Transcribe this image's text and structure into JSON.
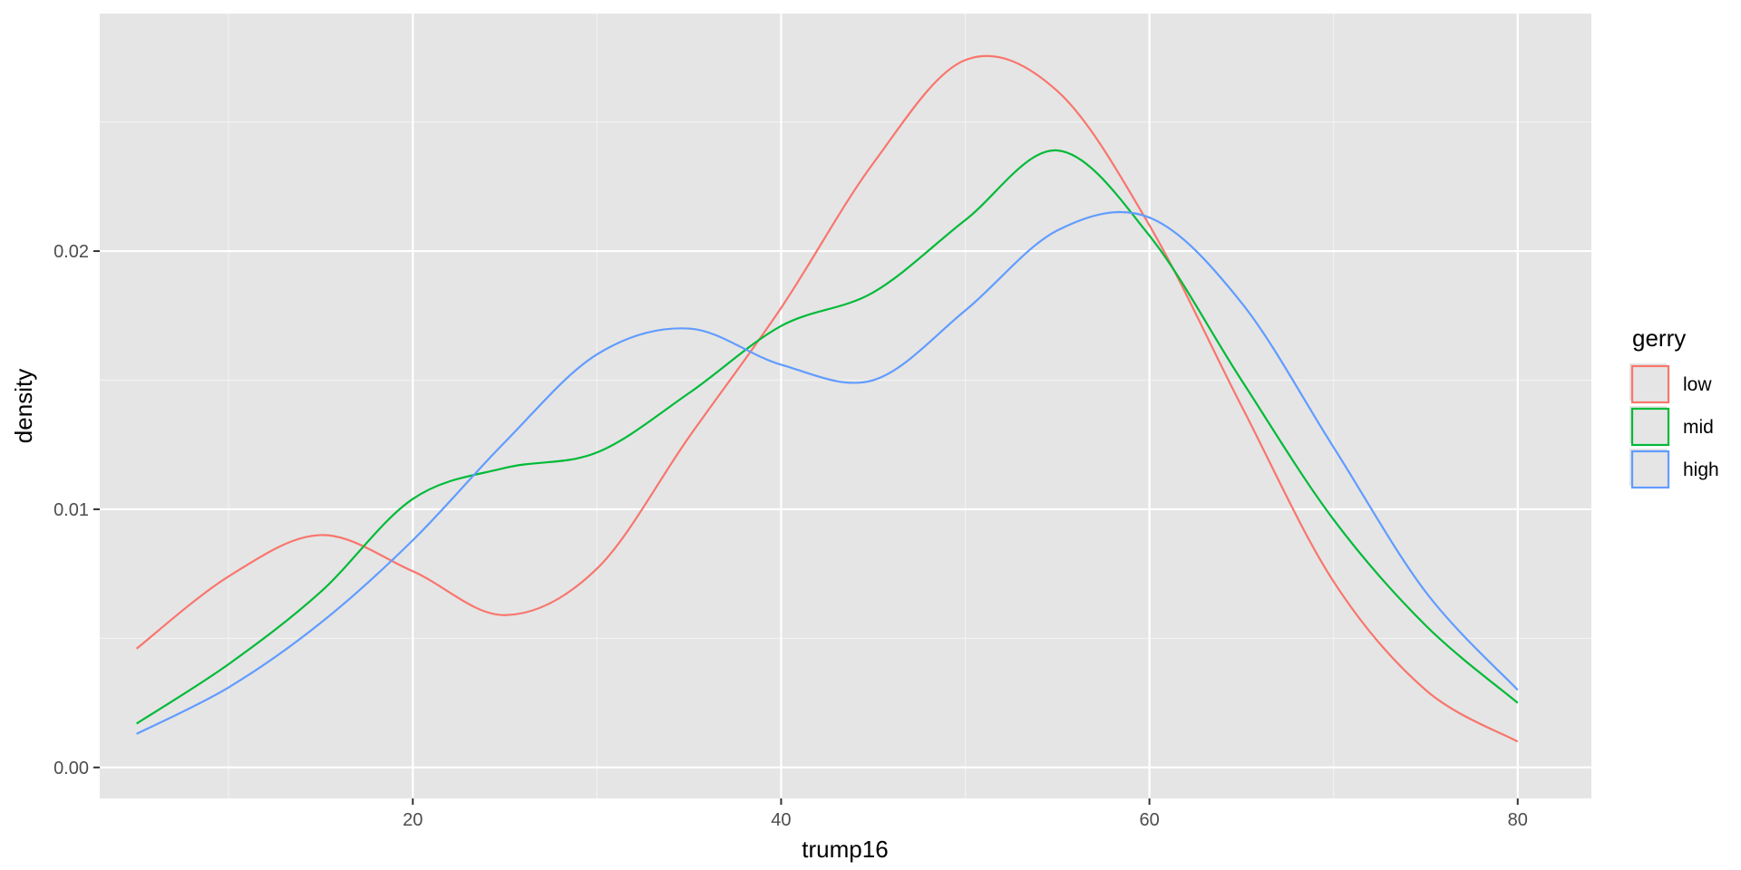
{
  "chart_data": {
    "type": "line",
    "subtype": "density",
    "xlabel": "trump16",
    "ylabel": "density",
    "xlim": [
      3,
      84
    ],
    "ylim": [
      -0.0012,
      0.0292
    ],
    "x_ticks": [
      {
        "value": 20,
        "label": "20"
      },
      {
        "value": 40,
        "label": "40"
      },
      {
        "value": 60,
        "label": "60"
      },
      {
        "value": 80,
        "label": "80"
      }
    ],
    "y_ticks": [
      {
        "value": 0.0,
        "label": "0.00"
      },
      {
        "value": 0.01,
        "label": "0.01"
      },
      {
        "value": 0.02,
        "label": "0.02"
      }
    ],
    "grid": true,
    "panel_background": "#e5e5e5",
    "legend": {
      "title": "gerry",
      "position": "right"
    },
    "series": [
      {
        "name": "low",
        "color": "#f8766d",
        "x": [
          5,
          10,
          15,
          20,
          25,
          30,
          35,
          40,
          45,
          50,
          55,
          60,
          65,
          70,
          75,
          80
        ],
        "y": [
          0.0046,
          0.0074,
          0.009,
          0.0076,
          0.0059,
          0.0077,
          0.0128,
          0.0178,
          0.0234,
          0.0274,
          0.0262,
          0.021,
          0.014,
          0.0072,
          0.003,
          0.001
        ]
      },
      {
        "name": "mid",
        "color": "#00ba38",
        "x": [
          5,
          10,
          15,
          20,
          25,
          30,
          35,
          40,
          45,
          50,
          55,
          60,
          65,
          70,
          75,
          80
        ],
        "y": [
          0.0017,
          0.004,
          0.0068,
          0.0104,
          0.0116,
          0.0122,
          0.0145,
          0.0171,
          0.0184,
          0.0212,
          0.0239,
          0.0206,
          0.015,
          0.0096,
          0.0055,
          0.0025
        ]
      },
      {
        "name": "high",
        "color": "#619cff",
        "x": [
          5,
          10,
          15,
          20,
          25,
          30,
          35,
          40,
          45,
          50,
          55,
          60,
          65,
          70,
          75,
          80
        ],
        "y": [
          0.0013,
          0.0031,
          0.0056,
          0.0088,
          0.0126,
          0.016,
          0.017,
          0.0156,
          0.015,
          0.0177,
          0.0208,
          0.0213,
          0.018,
          0.0124,
          0.0068,
          0.003
        ]
      }
    ]
  }
}
